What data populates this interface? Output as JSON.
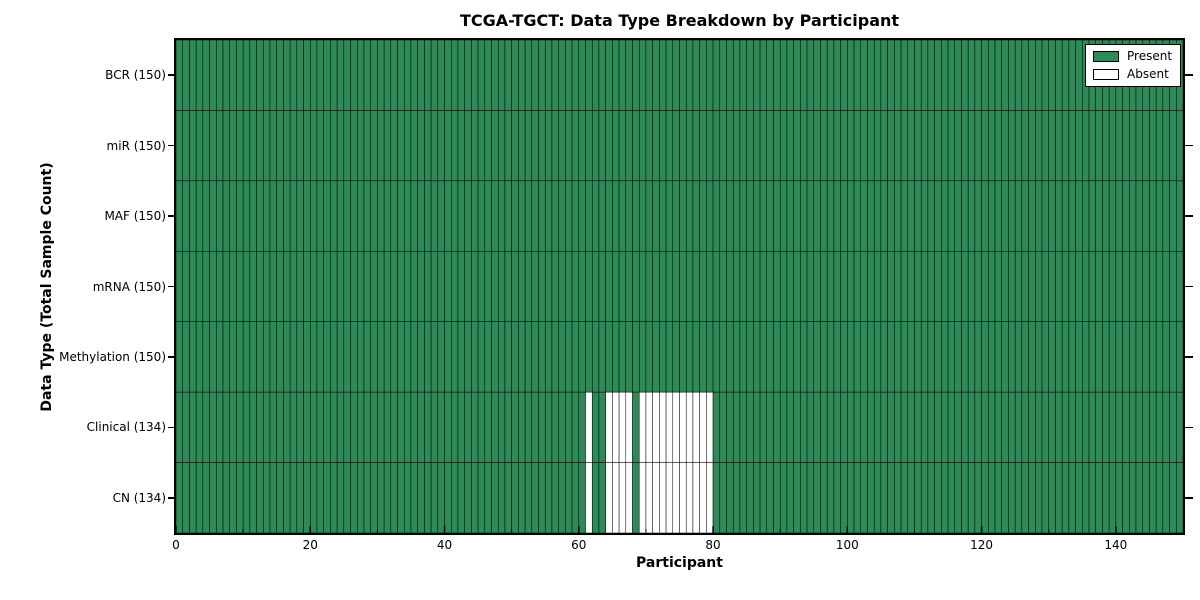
{
  "chart_data": {
    "type": "heatmap",
    "title": "TCGA-TGCT: Data Type Breakdown by Participant",
    "xlabel": "Participant",
    "ylabel": "Data Type (Total Sample Count)",
    "x_range": [
      0,
      150
    ],
    "n_participants": 150,
    "x_major_ticks": [
      0,
      20,
      40,
      60,
      80,
      100,
      120,
      140
    ],
    "x_tick_labels": [
      "0",
      "20",
      "40",
      "60",
      "80",
      "100",
      "120",
      "140"
    ],
    "x_minor_ticks": [
      10,
      30,
      50,
      70,
      90,
      110,
      130
    ],
    "grid": "cell-borders",
    "legend_position": "upper-right-inside",
    "colors": {
      "present": "#2e8b57",
      "absent": "#ffffff",
      "edge": "#000000"
    },
    "rows": [
      {
        "label": "BCR (150)",
        "data_type": "BCR",
        "present_count": 150,
        "absent_participants": []
      },
      {
        "label": "miR (150)",
        "data_type": "miR",
        "present_count": 150,
        "absent_participants": []
      },
      {
        "label": "MAF (150)",
        "data_type": "MAF",
        "present_count": 150,
        "absent_participants": []
      },
      {
        "label": "mRNA (150)",
        "data_type": "mRNA",
        "present_count": 150,
        "absent_participants": []
      },
      {
        "label": "Methylation (150)",
        "data_type": "Methylation",
        "present_count": 150,
        "absent_participants": []
      },
      {
        "label": "Clinical (134)",
        "data_type": "Clinical",
        "present_count": 134,
        "absent_participants": [
          61,
          64,
          65,
          66,
          67,
          69,
          70,
          71,
          72,
          73,
          74,
          75,
          76,
          77,
          78,
          79
        ]
      },
      {
        "label": "CN (134)",
        "data_type": "CN",
        "present_count": 134,
        "absent_participants": [
          61,
          64,
          65,
          66,
          67,
          69,
          70,
          71,
          72,
          73,
          74,
          75,
          76,
          77,
          78,
          79
        ]
      }
    ],
    "legend": [
      {
        "label": "Present",
        "color": "#2e8b57"
      },
      {
        "label": "Absent",
        "color": "#ffffff"
      }
    ]
  }
}
